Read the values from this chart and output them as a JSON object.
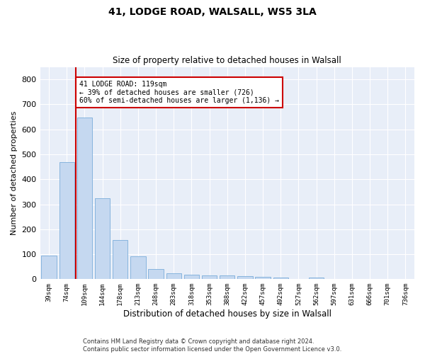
{
  "title1": "41, LODGE ROAD, WALSALL, WS5 3LA",
  "title2": "Size of property relative to detached houses in Walsall",
  "xlabel": "Distribution of detached houses by size in Walsall",
  "ylabel": "Number of detached properties",
  "categories": [
    "39sqm",
    "74sqm",
    "109sqm",
    "144sqm",
    "178sqm",
    "213sqm",
    "248sqm",
    "283sqm",
    "318sqm",
    "353sqm",
    "388sqm",
    "422sqm",
    "457sqm",
    "492sqm",
    "527sqm",
    "562sqm",
    "597sqm",
    "631sqm",
    "666sqm",
    "701sqm",
    "736sqm"
  ],
  "values": [
    95,
    470,
    648,
    325,
    158,
    92,
    40,
    25,
    18,
    15,
    14,
    13,
    10,
    7,
    0,
    8,
    0,
    0,
    0,
    0,
    0
  ],
  "bar_color": "#c5d8f0",
  "bar_edgecolor": "#7aadda",
  "vline_x": 1.5,
  "vline_color": "#cc0000",
  "annotation_text": "41 LODGE ROAD: 119sqm\n← 39% of detached houses are smaller (726)\n60% of semi-detached houses are larger (1,136) →",
  "annotation_box_color": "#cc0000",
  "ylim": [
    0,
    850
  ],
  "yticks": [
    0,
    100,
    200,
    300,
    400,
    500,
    600,
    700,
    800
  ],
  "bg_color": "#e8eef8",
  "grid_color": "#ffffff",
  "footer1": "Contains HM Land Registry data © Crown copyright and database right 2024.",
  "footer2": "Contains public sector information licensed under the Open Government Licence v3.0."
}
